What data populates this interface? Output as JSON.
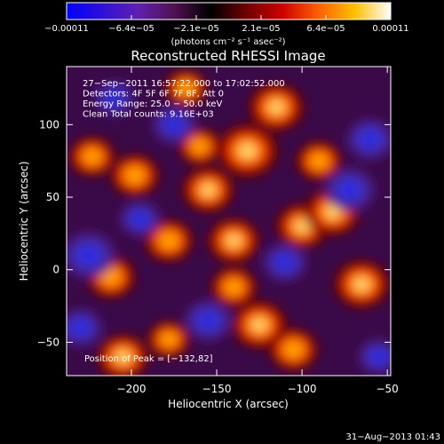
{
  "chart_data": {
    "type": "heatmap",
    "title": "Reconstructed RHESSI Image",
    "xlabel": "Heliocentric X (arcsec)",
    "ylabel": "Heliocentric Y (arcsec)",
    "xlim": [
      -238,
      -48
    ],
    "ylim": [
      -73,
      140
    ],
    "x_ticks": [
      -200,
      -150,
      -100,
      -50
    ],
    "x_tick_labels": [
      "−200",
      "−150",
      "−100",
      "−50"
    ],
    "y_ticks": [
      100,
      50,
      0,
      -50
    ],
    "y_tick_labels": [
      "100",
      "50",
      "0",
      "−50"
    ],
    "colorbar": {
      "min": -0.00011,
      "max": 0.00011,
      "tick_labels": [
        "−0.00011",
        "−6.4e−05",
        "−2.1e−05",
        "2.1e−05",
        "6.4e−05",
        "0.00011"
      ],
      "unit": "(photons cm⁻² s⁻¹ asec⁻²)",
      "colors": [
        "#0000ff",
        "#3010d8",
        "#6020b0",
        "#501050",
        "#000000",
        "#700000",
        "#d00000",
        "#ff6000",
        "#ffc000",
        "#ffffff"
      ]
    },
    "annotations": [
      "27−Sep−2011 16:57:22.000 to 17:02:52.000",
      "Detectors: 4F 5F 6F 7F 8F, Att 0",
      "Energy Range: 25.0 − 50.0 keV",
      "Clean    Total counts: 9.16E+03"
    ],
    "peak_label": "Position of Peak = [−132,82]",
    "peak_position": [
      -132,
      82
    ],
    "blobs": [
      {
        "x": -132,
        "y": 82,
        "value": 0.00011
      },
      {
        "x": -115,
        "y": 112,
        "value": 9e-05
      },
      {
        "x": -155,
        "y": 55,
        "value": 8e-05
      },
      {
        "x": -198,
        "y": 65,
        "value": 7e-05
      },
      {
        "x": -178,
        "y": 20,
        "value": 7e-05
      },
      {
        "x": -140,
        "y": 20,
        "value": 8e-05
      },
      {
        "x": -125,
        "y": -38,
        "value": 9e-05
      },
      {
        "x": -100,
        "y": 30,
        "value": 8e-05
      },
      {
        "x": -82,
        "y": 40,
        "value": 9e-05
      },
      {
        "x": -65,
        "y": -10,
        "value": 9e-05
      },
      {
        "x": -140,
        "y": -12,
        "value": 6e-05
      },
      {
        "x": -178,
        "y": -48,
        "value": 5e-05
      },
      {
        "x": -212,
        "y": -5,
        "value": 7e-05
      },
      {
        "x": -223,
        "y": 78,
        "value": 6e-05
      },
      {
        "x": -205,
        "y": -60,
        "value": 8e-05
      },
      {
        "x": -168,
        "y": 125,
        "value": 5e-05
      },
      {
        "x": -90,
        "y": 75,
        "value": 6e-05
      },
      {
        "x": -105,
        "y": -55,
        "value": 7e-05
      },
      {
        "x": -160,
        "y": 85,
        "value": 5e-05
      },
      {
        "x": -210,
        "y": 118,
        "value": -4e-05
      },
      {
        "x": -60,
        "y": 90,
        "value": -6e-05
      },
      {
        "x": -72,
        "y": 55,
        "value": -7e-05
      },
      {
        "x": -225,
        "y": 10,
        "value": -8e-05
      },
      {
        "x": -155,
        "y": -35,
        "value": -6e-05
      },
      {
        "x": -175,
        "y": 100,
        "value": -5e-05
      },
      {
        "x": -195,
        "y": 35,
        "value": -4e-05
      },
      {
        "x": -110,
        "y": 5,
        "value": -5e-05
      },
      {
        "x": -55,
        "y": -60,
        "value": -4e-05
      },
      {
        "x": -230,
        "y": -40,
        "value": -5e-05
      }
    ],
    "timestamp": "31−Aug−2013 01:43"
  }
}
